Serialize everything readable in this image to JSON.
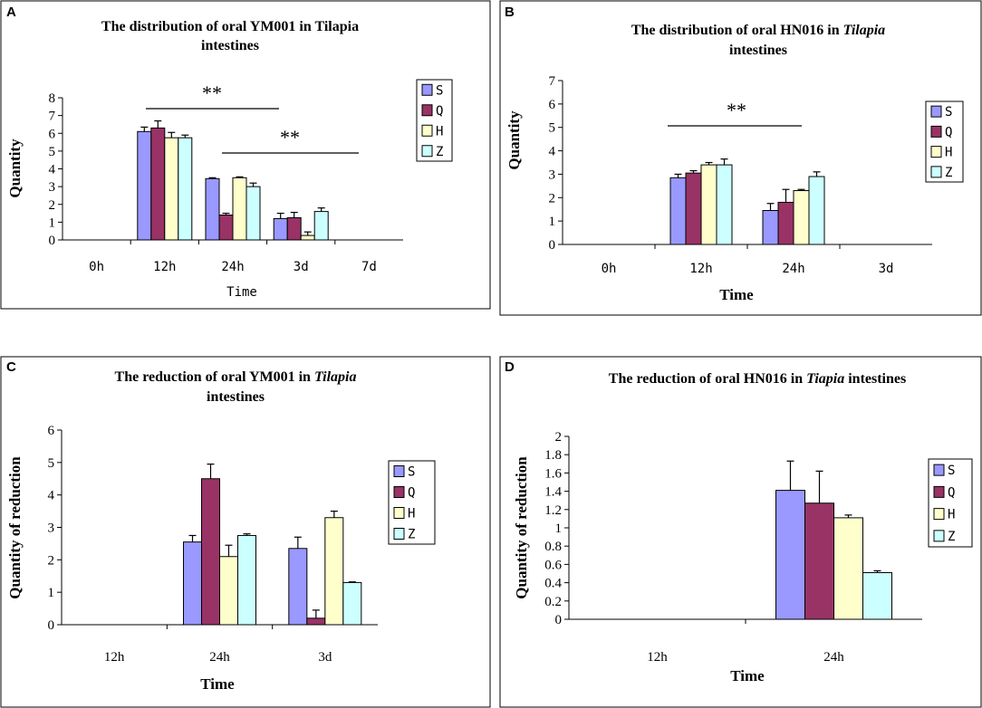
{
  "chart_data": [
    {
      "panel_label": "A",
      "type": "bar",
      "title_lines": [
        [
          {
            "text": "The distribution of oral YM001 in Tilapia",
            "italic": false
          }
        ],
        [
          {
            "text": "intestines",
            "italic": false
          }
        ]
      ],
      "xlabel": "Time",
      "ylabel": "Quantity",
      "ylim": [
        0,
        8
      ],
      "yticks": [
        "0",
        "1",
        "2",
        "3",
        "4",
        "5",
        "6",
        "7",
        "8"
      ],
      "categories": [
        "0h",
        "12h",
        "24h",
        "3d",
        "7d"
      ],
      "series": [
        {
          "name": "S",
          "color": "#9999ff",
          "values": [
            0,
            6.1,
            3.45,
            1.2,
            0
          ],
          "errors": [
            0,
            0.25,
            0.05,
            0.3,
            0
          ]
        },
        {
          "name": "Q",
          "color": "#993366",
          "values": [
            0,
            6.3,
            1.4,
            1.25,
            0
          ],
          "errors": [
            0,
            0.4,
            0.1,
            0.3,
            0
          ]
        },
        {
          "name": "H",
          "color": "#ffffcc",
          "values": [
            0,
            5.75,
            3.5,
            0.25,
            0
          ],
          "errors": [
            0,
            0.3,
            0.05,
            0.2,
            0
          ]
        },
        {
          "name": "Z",
          "color": "#ccffff",
          "values": [
            0,
            5.75,
            3.0,
            1.6,
            0
          ],
          "errors": [
            0,
            0.15,
            0.2,
            0.2,
            0
          ]
        }
      ],
      "legend": "right",
      "annotations": [
        {
          "text": "**"
        },
        {
          "text": "**"
        }
      ]
    },
    {
      "panel_label": "B",
      "type": "bar",
      "title_lines": [
        [
          {
            "text": "The distribution of oral HN016 in ",
            "italic": false
          },
          {
            "text": "Tilapia",
            "italic": true
          }
        ],
        [
          {
            "text": "intestines",
            "italic": false
          }
        ]
      ],
      "xlabel": "Time",
      "ylabel": "Quantity",
      "ylim": [
        0,
        7
      ],
      "yticks": [
        "0",
        "1",
        "2",
        "3",
        "4",
        "5",
        "6",
        "7"
      ],
      "categories": [
        "0h",
        "12h",
        "24h",
        "3d"
      ],
      "series": [
        {
          "name": "S",
          "color": "#9999ff",
          "values": [
            0,
            2.85,
            1.45,
            0
          ],
          "errors": [
            0,
            0.15,
            0.3,
            0
          ]
        },
        {
          "name": "Q",
          "color": "#993366",
          "values": [
            0,
            3.05,
            1.8,
            0
          ],
          "errors": [
            0,
            0.1,
            0.55,
            0
          ]
        },
        {
          "name": "H",
          "color": "#ffffcc",
          "values": [
            0,
            3.4,
            2.3,
            0
          ],
          "errors": [
            0,
            0.1,
            0.05,
            0
          ]
        },
        {
          "name": "Z",
          "color": "#ccffff",
          "values": [
            0,
            3.4,
            2.9,
            0
          ],
          "errors": [
            0,
            0.25,
            0.2,
            0
          ]
        }
      ],
      "legend": "right",
      "annotations": [
        {
          "text": "**"
        }
      ]
    },
    {
      "panel_label": "C",
      "type": "bar",
      "title_lines": [
        [
          {
            "text": "The reduction of  oral YM001 in ",
            "italic": false
          },
          {
            "text": "Tilapia",
            "italic": true
          }
        ],
        [
          {
            "text": "intestines",
            "italic": false
          }
        ]
      ],
      "xlabel": "Time",
      "ylabel": "Quantity of reduction",
      "ylim": [
        0,
        6
      ],
      "yticks": [
        "0",
        "1",
        "2",
        "3",
        "4",
        "5",
        "6"
      ],
      "categories": [
        "12h",
        "24h",
        "3d"
      ],
      "series": [
        {
          "name": "S",
          "color": "#9999ff",
          "values": [
            0,
            2.55,
            2.35
          ],
          "errors": [
            0,
            0.2,
            0.35
          ]
        },
        {
          "name": "Q",
          "color": "#993366",
          "values": [
            0,
            4.5,
            0.2
          ],
          "errors": [
            0,
            0.45,
            0.25
          ]
        },
        {
          "name": "H",
          "color": "#ffffcc",
          "values": [
            0,
            2.1,
            3.3
          ],
          "errors": [
            0,
            0.35,
            0.2
          ]
        },
        {
          "name": "Z",
          "color": "#ccffff",
          "values": [
            0,
            2.75,
            1.3
          ],
          "errors": [
            0,
            0.05,
            0.02
          ]
        }
      ],
      "legend": "right",
      "annotations": []
    },
    {
      "panel_label": "D",
      "type": "bar",
      "title_lines": [
        [
          {
            "text": "The reduction of  oral HN016 in ",
            "italic": false
          },
          {
            "text": "Tiapia",
            "italic": true
          },
          {
            "text": " intestines",
            "italic": false
          }
        ]
      ],
      "xlabel": "Time",
      "ylabel": "Quantity of reduction",
      "ylim": [
        0,
        2
      ],
      "yticks": [
        "0",
        "0.2",
        "0.4",
        "0.6",
        "0.8",
        "1",
        "1.2",
        "1.4",
        "1.6",
        "1.8",
        "2"
      ],
      "categories": [
        "12h",
        "24h"
      ],
      "series": [
        {
          "name": "S",
          "color": "#9999ff",
          "values": [
            0,
            1.41
          ],
          "errors": [
            0,
            0.32
          ]
        },
        {
          "name": "Q",
          "color": "#993366",
          "values": [
            0,
            1.27
          ],
          "errors": [
            0,
            0.35
          ]
        },
        {
          "name": "H",
          "color": "#ffffcc",
          "values": [
            0,
            1.11
          ],
          "errors": [
            0,
            0.03
          ]
        },
        {
          "name": "Z",
          "color": "#ccffff",
          "values": [
            0,
            0.51
          ],
          "errors": [
            0,
            0.02
          ]
        }
      ],
      "legend": "right",
      "annotations": []
    }
  ]
}
